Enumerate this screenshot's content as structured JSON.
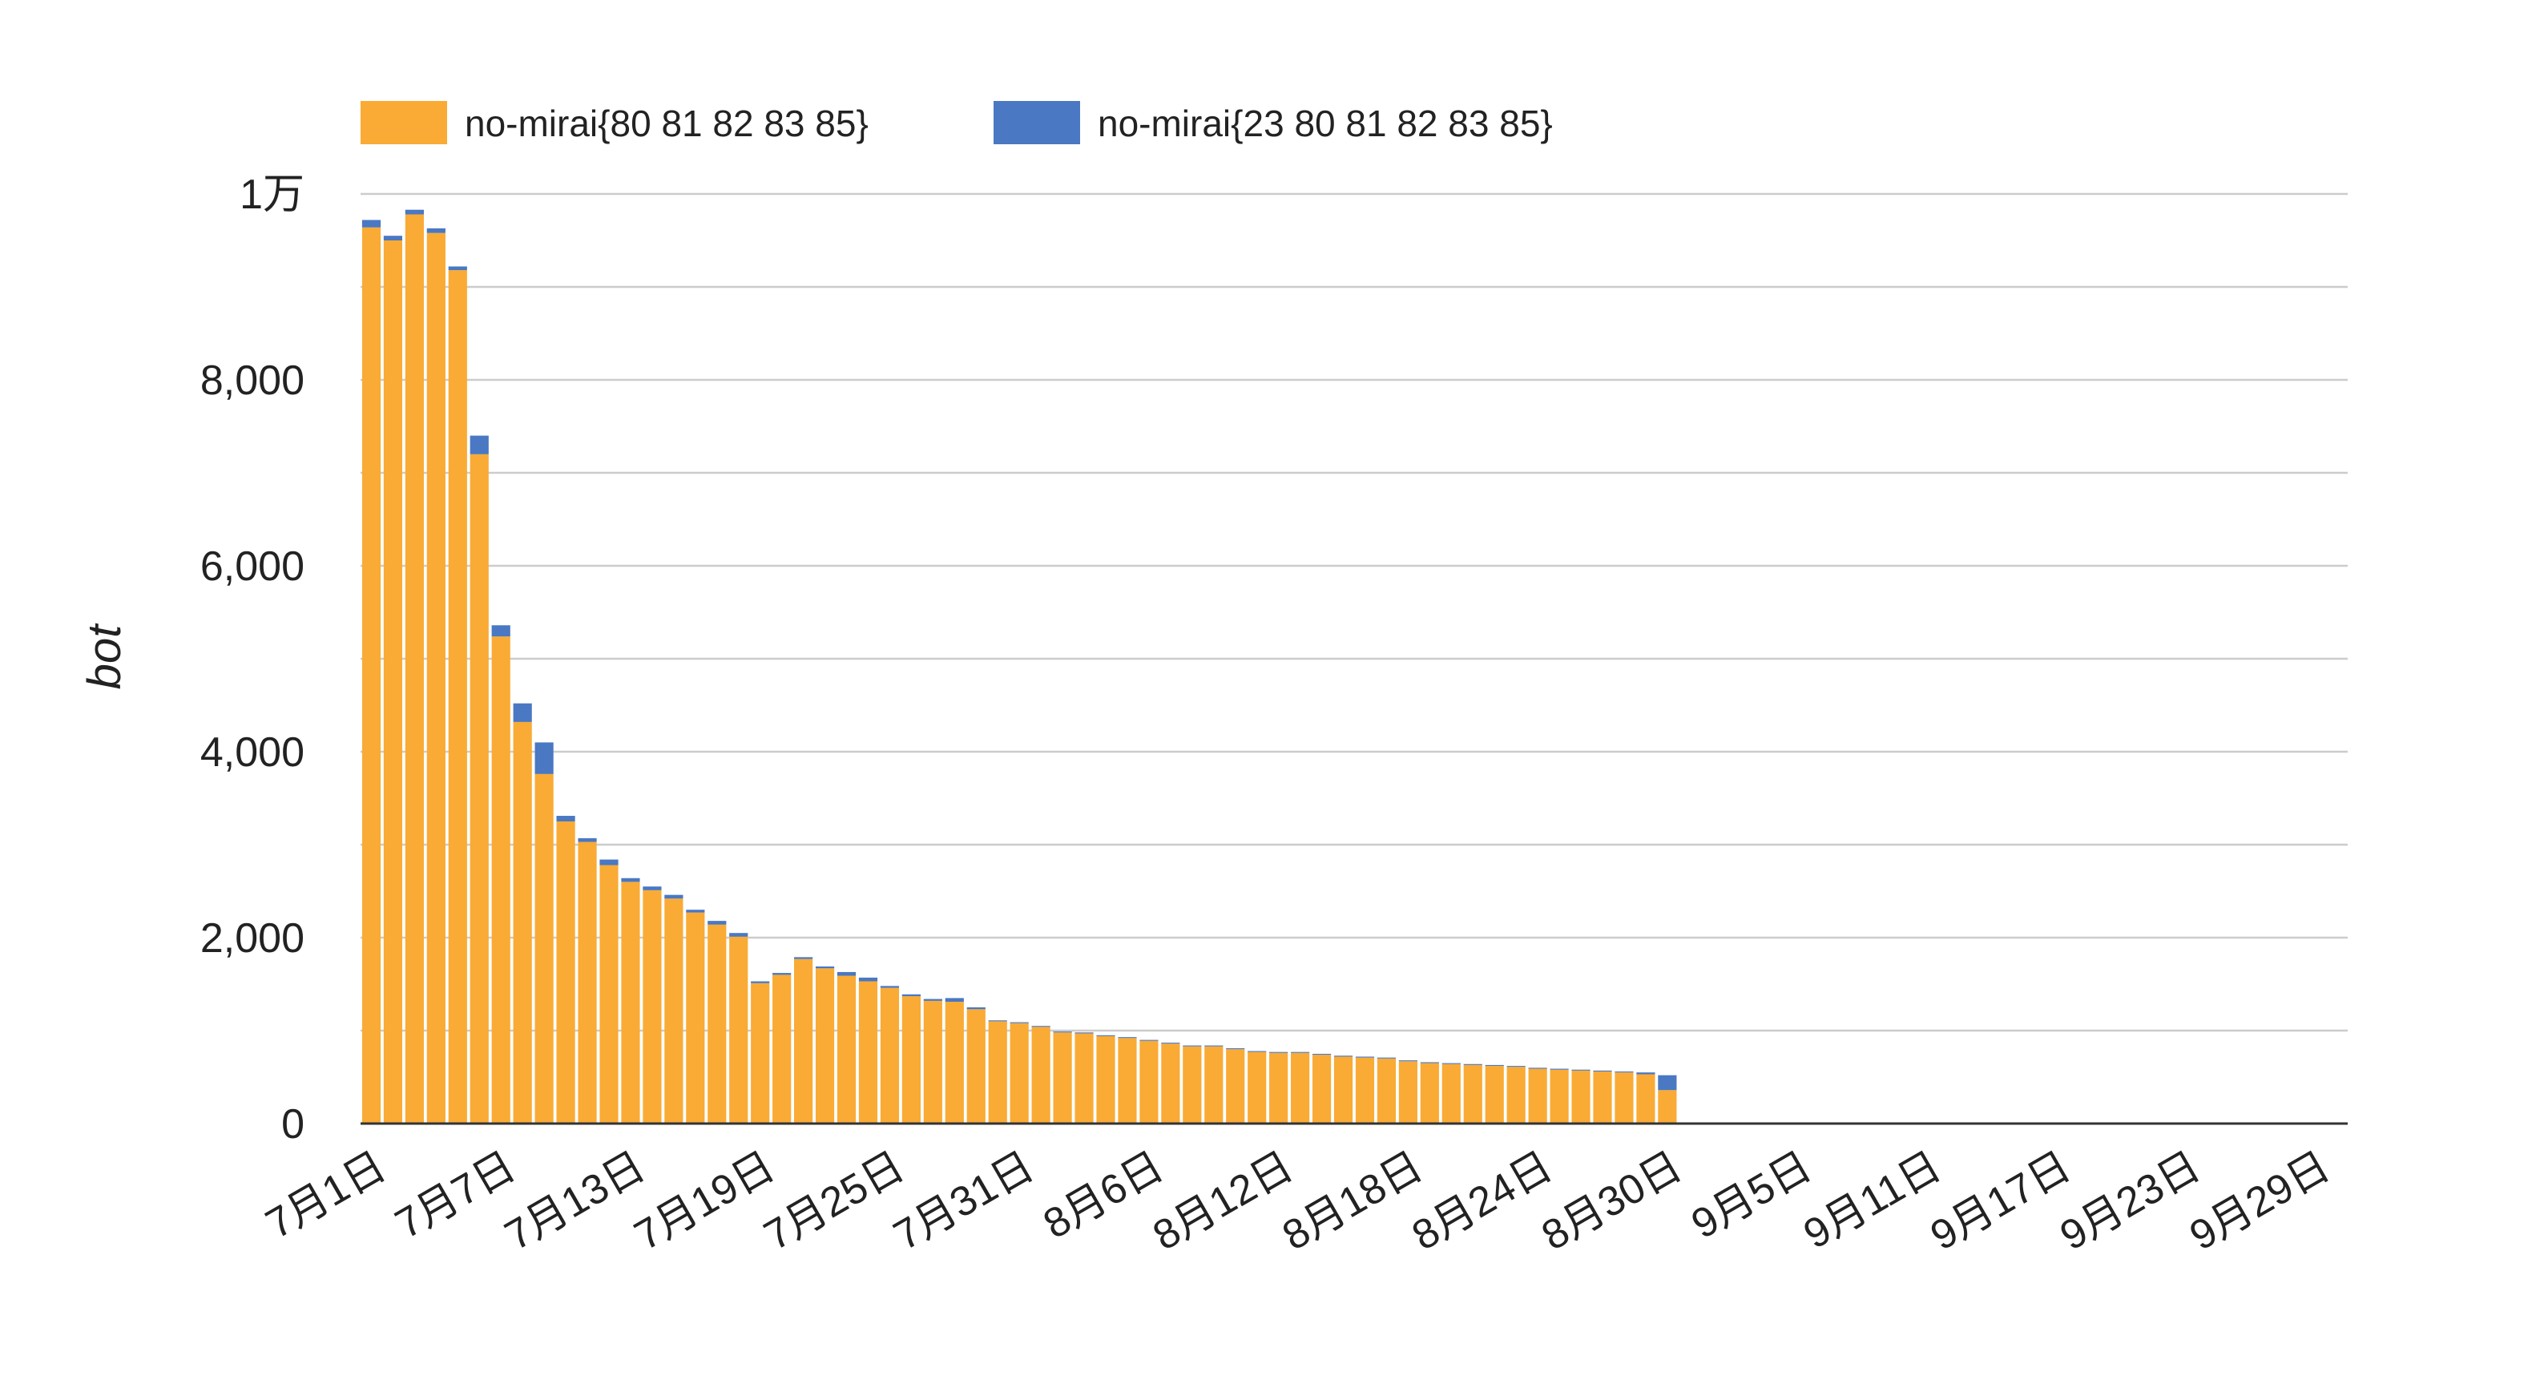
{
  "chart_data": {
    "type": "bar",
    "stacked": true,
    "title": "",
    "xlabel": "",
    "ylabel": "bot",
    "ylim": [
      0,
      10000
    ],
    "grid": true,
    "legend_position": "top-left",
    "y_ticks": [
      {
        "value": 0,
        "label": "0"
      },
      {
        "value": 2000,
        "label": "2,000"
      },
      {
        "value": 4000,
        "label": "4,000"
      },
      {
        "value": 6000,
        "label": "6,000"
      },
      {
        "value": 8000,
        "label": "8,000"
      },
      {
        "value": 10000,
        "label": "1万"
      }
    ],
    "x_start": "7月1日",
    "x_end": "9月30日",
    "x_ticks": [
      "7月1日",
      "7月7日",
      "7月13日",
      "7月19日",
      "7月25日",
      "7月31日",
      "8月6日",
      "8月12日",
      "8月18日",
      "8月24日",
      "8月30日",
      "9月5日",
      "9月11日",
      "9月17日",
      "9月23日",
      "9月29日"
    ],
    "categories": [
      "7月1日",
      "7月2日",
      "7月3日",
      "7月4日",
      "7月5日",
      "7月6日",
      "7月7日",
      "7月8日",
      "7月9日",
      "7月10日",
      "7月11日",
      "7月12日",
      "7月13日",
      "7月14日",
      "7月15日",
      "7月16日",
      "7月17日",
      "7月18日",
      "7月19日",
      "7月20日",
      "7月21日",
      "7月22日",
      "7月23日",
      "7月24日",
      "7月25日",
      "7月26日",
      "7月27日",
      "7月28日",
      "7月29日",
      "7月30日",
      "7月31日",
      "8月1日",
      "8月2日",
      "8月3日",
      "8月4日",
      "8月5日",
      "8月6日",
      "8月7日",
      "8月8日",
      "8月9日",
      "8月10日",
      "8月11日",
      "8月12日",
      "8月13日",
      "8月14日",
      "8月15日",
      "8月16日",
      "8月17日",
      "8月18日",
      "8月19日",
      "8月20日",
      "8月21日",
      "8月22日",
      "8月23日",
      "8月24日",
      "8月25日",
      "8月26日",
      "8月27日",
      "8月28日",
      "8月29日",
      "8月30日"
    ],
    "series": [
      {
        "name": "no-mirai{80 81 82 83 85}",
        "color": "#F9AB35",
        "values": [
          9640,
          9500,
          9780,
          9580,
          9180,
          7200,
          5240,
          4320,
          3760,
          3250,
          3030,
          2780,
          2600,
          2510,
          2420,
          2270,
          2140,
          2010,
          1510,
          1600,
          1770,
          1670,
          1590,
          1530,
          1460,
          1370,
          1320,
          1310,
          1230,
          1100,
          1080,
          1040,
          980,
          970,
          940,
          920,
          890,
          860,
          830,
          830,
          800,
          770,
          760,
          760,
          740,
          720,
          710,
          700,
          670,
          650,
          640,
          630,
          620,
          610,
          590,
          580,
          570,
          560,
          550,
          530,
          360
        ]
      },
      {
        "name": "no-mirai{23 80 81 82 83 85}",
        "color": "#4A78C2",
        "values": [
          80,
          50,
          50,
          50,
          40,
          200,
          120,
          200,
          340,
          60,
          40,
          60,
          40,
          40,
          40,
          30,
          40,
          40,
          20,
          20,
          20,
          20,
          40,
          40,
          20,
          20,
          20,
          40,
          20,
          10,
          10,
          10,
          10,
          10,
          10,
          10,
          10,
          10,
          10,
          10,
          10,
          10,
          10,
          10,
          10,
          10,
          10,
          10,
          10,
          10,
          10,
          10,
          10,
          10,
          10,
          10,
          10,
          10,
          10,
          20,
          160
        ]
      }
    ]
  }
}
